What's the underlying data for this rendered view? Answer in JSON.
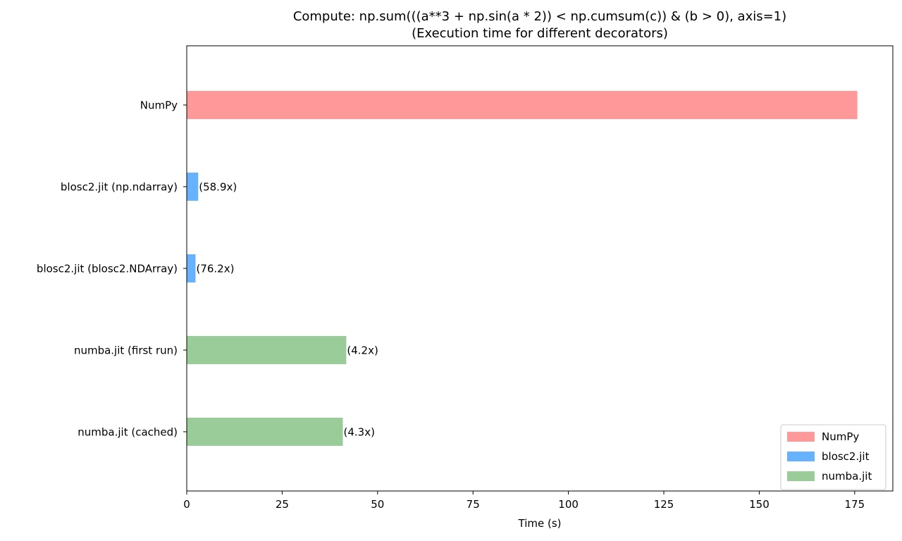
{
  "chart_data": {
    "type": "bar",
    "orientation": "horizontal",
    "title_line1": "Compute: np.sum(((a**3 + np.sin(a * 2)) < np.cumsum(c)) & (b > 0), axis=1)",
    "title_line2": "(Execution time for different decorators)",
    "xlabel": "Time (s)",
    "ylabel": "",
    "xlim": [
      0,
      185
    ],
    "x_ticks": [
      0,
      25,
      50,
      75,
      100,
      125,
      150,
      175
    ],
    "grid": false,
    "legend_position": "bottom-right",
    "categories": [
      "NumPy",
      "blosc2.jit (np.ndarray)",
      "blosc2.jit (blosc2.NDArray)",
      "numba.jit (first run)",
      "numba.jit (cached)"
    ],
    "values": [
      175.7,
      3.0,
      2.3,
      41.8,
      40.9
    ],
    "bar_labels": [
      "",
      "(58.9x)",
      "(76.2x)",
      "(4.2x)",
      "(4.3x)"
    ],
    "bar_groups": [
      "NumPy",
      "blosc2.jit",
      "blosc2.jit",
      "numba.jit",
      "numba.jit"
    ],
    "legend": [
      {
        "name": "NumPy",
        "color": "#ff9999"
      },
      {
        "name": "blosc2.jit",
        "color": "#66b2ff"
      },
      {
        "name": "numba.jit",
        "color": "#99cc99"
      }
    ]
  }
}
